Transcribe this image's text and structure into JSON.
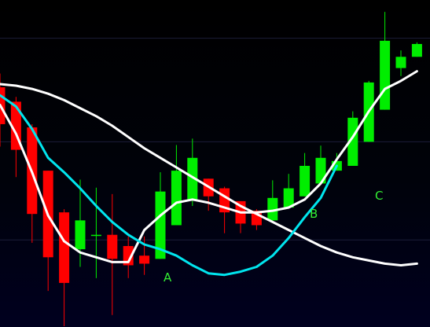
{
  "chart_data": {
    "type": "candlestick",
    "grid": true,
    "ylim": [
      0,
      100
    ],
    "colors": {
      "up": "#00ee00",
      "down": "#ff0000",
      "ma_white": "#ffffff",
      "ma_cyan": "#00e5ee",
      "annotation": "#33ee33",
      "grid": "#1b1d3a"
    },
    "candles": [
      {
        "o": 74.5,
        "h": 78.8,
        "l": 56.0,
        "c": 63.0
      },
      {
        "o": 70.0,
        "h": 71.5,
        "l": 46.5,
        "c": 55.0
      },
      {
        "o": 62.0,
        "h": 63.0,
        "l": 26.0,
        "c": 35.0
      },
      {
        "o": 48.5,
        "h": 48.5,
        "l": 11.0,
        "c": 21.5
      },
      {
        "o": 35.5,
        "h": 36.5,
        "l": 0.0,
        "c": 13.5
      },
      {
        "o": 24.0,
        "h": 45.7,
        "l": 18.5,
        "c": 33.0
      },
      {
        "o": 28.5,
        "h": 43.2,
        "l": 15.0,
        "c": 28.5
      },
      {
        "o": 28.5,
        "h": 41.2,
        "l": 3.5,
        "c": 21.0
      },
      {
        "o": 25.0,
        "h": 28.0,
        "l": 15.0,
        "c": 19.0
      },
      {
        "o": 22.0,
        "h": 28.0,
        "l": 16.0,
        "c": 19.5
      },
      {
        "o": 21.0,
        "h": 48.0,
        "l": 21.0,
        "c": 42.0
      },
      {
        "o": 31.5,
        "h": 56.5,
        "l": 31.5,
        "c": 48.5
      },
      {
        "o": 39.5,
        "h": 58.5,
        "l": 37.5,
        "c": 52.5
      },
      {
        "o": 46.0,
        "h": 46.0,
        "l": 36.0,
        "c": 40.5
      },
      {
        "o": 43.0,
        "h": 43.5,
        "l": 29.0,
        "c": 35.5
      },
      {
        "o": 39.0,
        "h": 39.0,
        "l": 29.0,
        "c": 32.0
      },
      {
        "o": 36.0,
        "h": 36.5,
        "l": 30.0,
        "c": 31.5
      },
      {
        "o": 33.0,
        "h": 45.5,
        "l": 32.5,
        "c": 40.0
      },
      {
        "o": 37.0,
        "h": 47.5,
        "l": 37.0,
        "c": 43.0
      },
      {
        "o": 40.5,
        "h": 54.0,
        "l": 40.5,
        "c": 50.0
      },
      {
        "o": 44.5,
        "h": 56.3,
        "l": 44.5,
        "c": 52.5
      },
      {
        "o": 48.5,
        "h": 54.0,
        "l": 48.5,
        "c": 51.5
      },
      {
        "o": 50.0,
        "h": 67.0,
        "l": 50.0,
        "c": 65.0
      },
      {
        "o": 57.5,
        "h": 76.5,
        "l": 57.5,
        "c": 76.0
      },
      {
        "o": 67.5,
        "h": 98.0,
        "l": 67.5,
        "c": 89.0
      },
      {
        "o": 80.5,
        "h": 86.0,
        "l": 78.0,
        "c": 84.0
      },
      {
        "o": 84.0,
        "h": 88.5,
        "l": 84.0,
        "c": 88.0
      }
    ],
    "series": [
      {
        "values": [
          75.5,
          75.0,
          74.0,
          72.5,
          70.5,
          68.0,
          65.5,
          62.5,
          59.0,
          55.5,
          52.5,
          49.5,
          46.5,
          43.5,
          40.5,
          37.5,
          35.0,
          32.5,
          30.0,
          27.5,
          25.0,
          23.0,
          21.5,
          20.5,
          19.5,
          19.0,
          19.5
        ]
      },
      {
        "values": [
          69.0,
          60.0,
          48.0,
          34.5,
          26.5,
          23.0,
          21.5,
          20.0,
          20.0,
          30.0,
          34.5,
          38.5,
          39.5,
          38.5,
          37.0,
          35.5,
          35.5,
          36.0,
          37.0,
          39.5,
          44.5,
          52.0,
          59.0,
          67.0,
          74.0,
          76.5,
          79.5
        ]
      },
      {
        "values": [
          72.0,
          68.5,
          61.5,
          52.5,
          48.0,
          43.0,
          37.5,
          32.5,
          28.5,
          25.5,
          24.0,
          22.0,
          19.0,
          16.5,
          16.0,
          17.0,
          18.5,
          22.0,
          27.5,
          34.0,
          40.0,
          50.0
        ]
      }
    ],
    "annotations": [
      "A",
      "B",
      "C"
    ]
  }
}
